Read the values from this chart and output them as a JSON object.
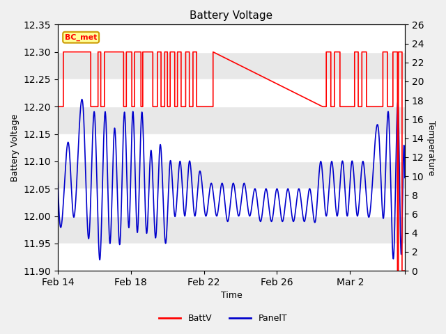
{
  "title": "Battery Voltage",
  "xlabel": "Time",
  "ylabel_left": "Battery Voltage",
  "ylabel_right": "Temperature",
  "ylim_left": [
    11.9,
    12.35
  ],
  "ylim_right": [
    0,
    26
  ],
  "bg_color": "#f0f0f0",
  "plot_bg_color": "#e8e8e8",
  "legend_label_red": "BattV",
  "legend_label_blue": "PanelT",
  "annotation_text": "BC_met",
  "annotation_bg": "#ffff99",
  "annotation_border": "#cc9900",
  "red_color": "#ff0000",
  "blue_color": "#0000cc",
  "grid_color": "#ffffff",
  "xmin": 0.0,
  "xmax": 19.0,
  "xtick_positions": [
    0,
    4,
    8,
    12,
    16,
    19
  ],
  "xtick_labels": [
    "Feb 14",
    "Feb 18",
    "Feb 22",
    "Feb 26",
    "Mar 2",
    ""
  ],
  "yticks_left": [
    11.9,
    11.95,
    12.0,
    12.05,
    12.1,
    12.15,
    12.2,
    12.25,
    12.3,
    12.35
  ],
  "yticks_right": [
    0,
    2,
    4,
    6,
    8,
    10,
    12,
    14,
    16,
    18,
    20,
    22,
    24,
    26
  ],
  "stripe_bands": [
    [
      11.9,
      11.95
    ],
    [
      12.0,
      12.05
    ],
    [
      12.1,
      12.15
    ],
    [
      12.2,
      12.25
    ],
    [
      12.3,
      12.35
    ]
  ],
  "batt_x": [
    0.0,
    0.3,
    0.3,
    1.8,
    1.8,
    2.2,
    2.2,
    2.35,
    2.35,
    2.55,
    2.55,
    3.6,
    3.6,
    3.75,
    3.75,
    4.05,
    4.05,
    4.2,
    4.2,
    4.55,
    4.55,
    4.65,
    4.65,
    5.2,
    5.2,
    5.45,
    5.45,
    5.65,
    5.65,
    5.85,
    5.85,
    6.0,
    6.0,
    6.15,
    6.15,
    6.4,
    6.4,
    6.55,
    6.55,
    6.75,
    6.75,
    7.0,
    7.0,
    7.2,
    7.2,
    7.4,
    7.4,
    7.6,
    7.6,
    8.5,
    8.5,
    14.5,
    14.5,
    14.7,
    14.7,
    14.95,
    14.95,
    15.15,
    15.15,
    15.45,
    15.45,
    16.25,
    16.25,
    16.45,
    16.45,
    16.65,
    16.65,
    16.9,
    16.9,
    17.8,
    17.8,
    18.05,
    18.05,
    18.35,
    18.35,
    18.6,
    18.6,
    18.65,
    18.65,
    18.85,
    18.85,
    19.0
  ],
  "batt_y": [
    12.2,
    12.2,
    12.3,
    12.3,
    12.2,
    12.2,
    12.3,
    12.3,
    12.2,
    12.2,
    12.3,
    12.3,
    12.2,
    12.2,
    12.3,
    12.3,
    12.2,
    12.2,
    12.3,
    12.3,
    12.2,
    12.2,
    12.3,
    12.3,
    12.2,
    12.2,
    12.3,
    12.3,
    12.2,
    12.2,
    12.3,
    12.3,
    12.2,
    12.2,
    12.3,
    12.3,
    12.2,
    12.2,
    12.3,
    12.3,
    12.2,
    12.2,
    12.3,
    12.3,
    12.2,
    12.2,
    12.3,
    12.3,
    12.2,
    12.2,
    12.3,
    12.2,
    12.2,
    12.2,
    12.3,
    12.3,
    12.2,
    12.2,
    12.3,
    12.3,
    12.2,
    12.2,
    12.3,
    12.3,
    12.2,
    12.2,
    12.3,
    12.3,
    12.2,
    12.2,
    12.3,
    12.3,
    12.2,
    12.2,
    12.3,
    12.3,
    11.9,
    11.9,
    12.3,
    12.3,
    11.9,
    11.9
  ]
}
